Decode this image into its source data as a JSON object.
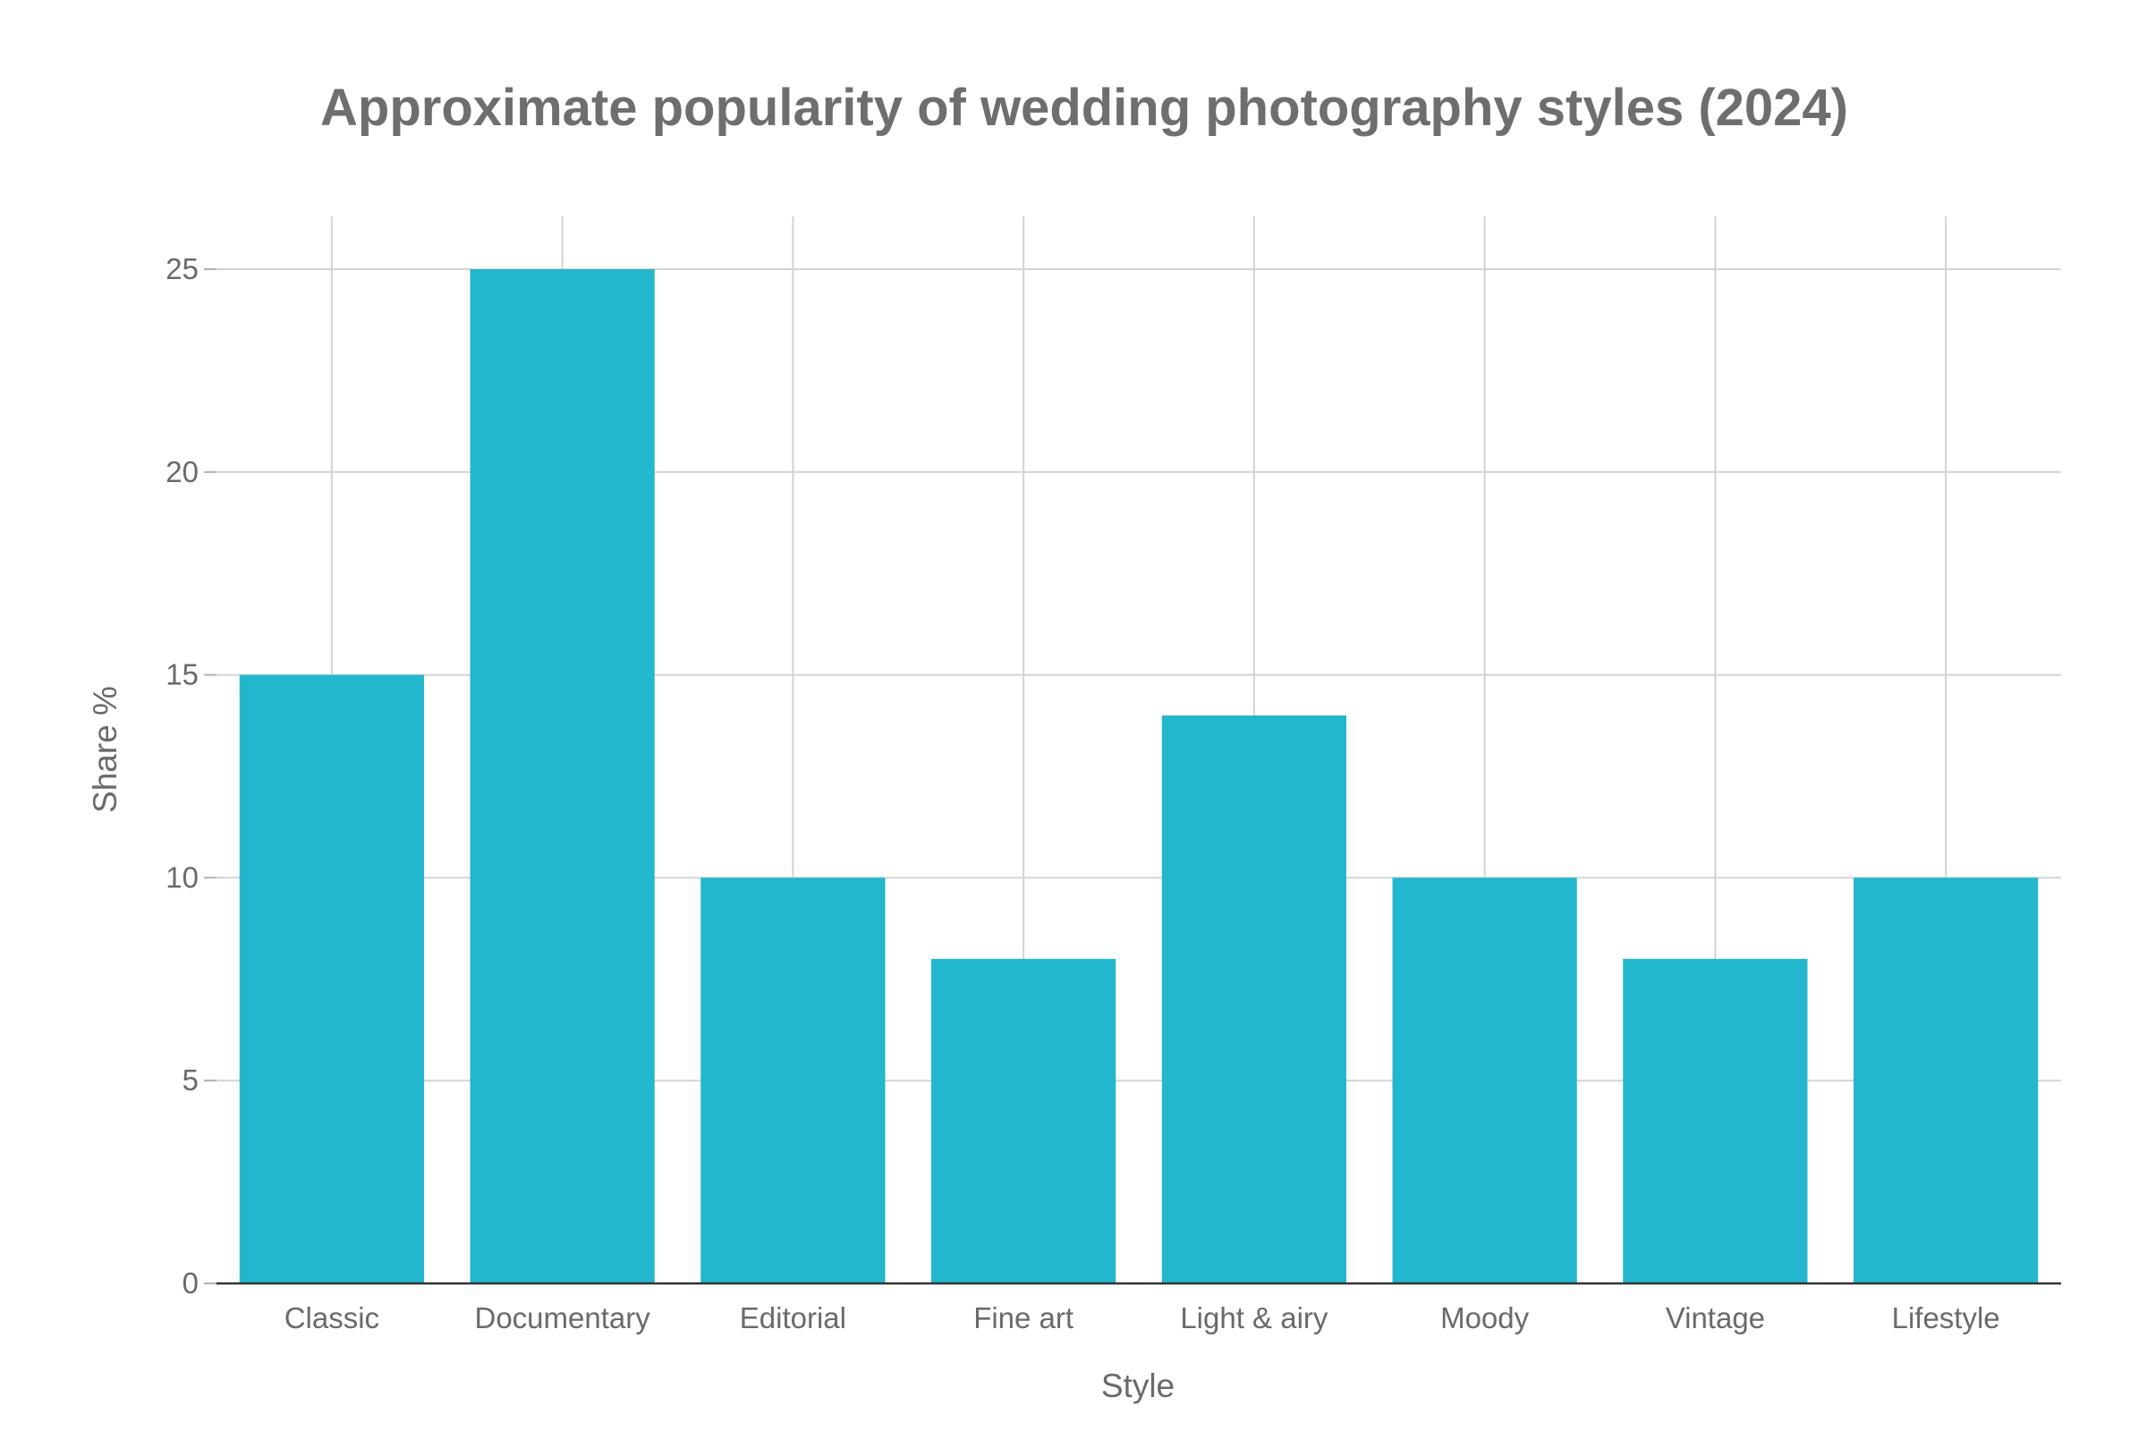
{
  "chart_data": {
    "type": "bar",
    "title": "Approximate popularity of wedding photography styles (2024)",
    "xlabel": "Style",
    "ylabel": "Share %",
    "categories": [
      "Classic",
      "Documentary",
      "Editorial",
      "Fine art",
      "Light & airy",
      "Moody",
      "Vintage",
      "Lifestyle"
    ],
    "values": [
      15,
      25,
      10,
      8,
      14,
      10,
      8,
      10
    ],
    "ylim": [
      0,
      26.3
    ],
    "yticks": [
      0,
      5,
      10,
      15,
      20,
      25
    ],
    "grid": true,
    "bar_color": "#22b7cc",
    "background_color": "#ffffff"
  }
}
